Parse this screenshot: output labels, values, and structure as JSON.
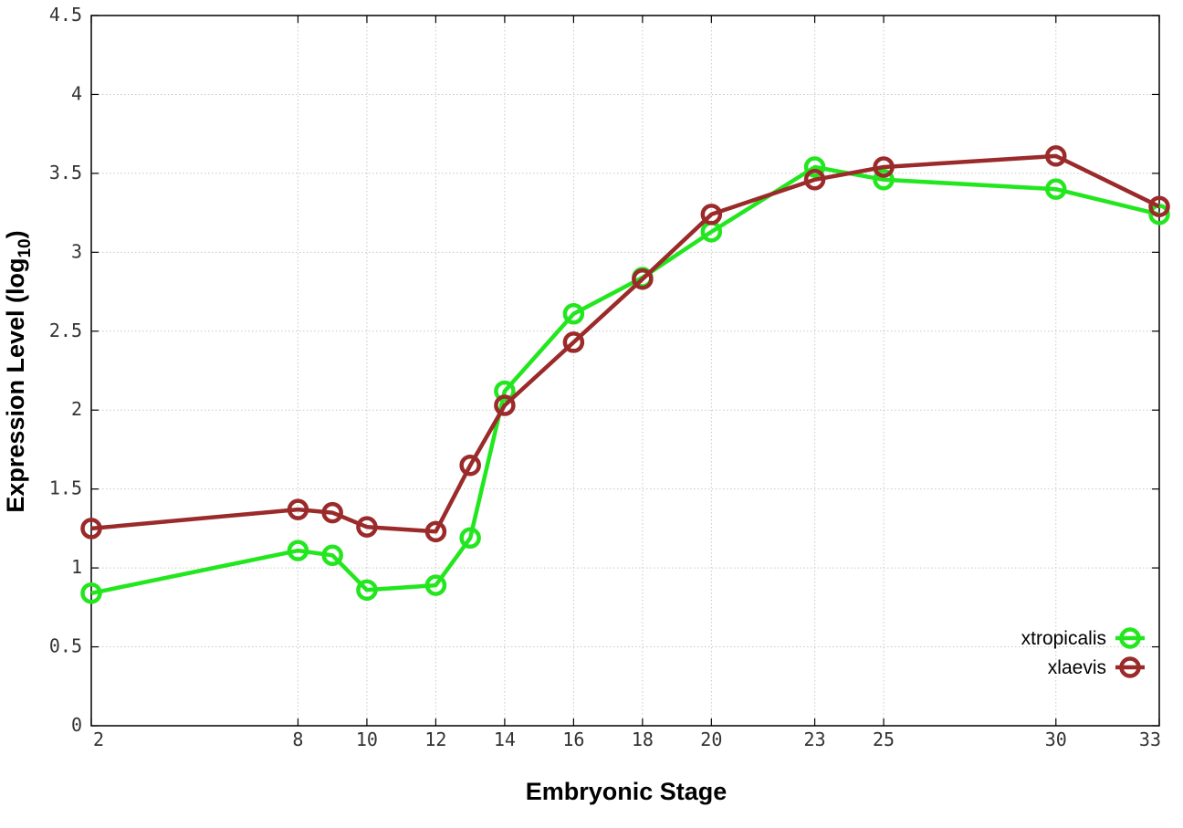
{
  "chart_data": {
    "type": "line",
    "xlabel": "Embryonic Stage",
    "ylabel_main": "Expression Level (log",
    "ylabel_sub": "10",
    "ylabel_close": ")",
    "x": [
      2,
      8,
      9,
      10,
      12,
      13,
      14,
      16,
      18,
      20,
      23,
      25,
      30,
      33
    ],
    "xlim": [
      2,
      33
    ],
    "ylim": [
      0,
      4.5
    ],
    "x_ticks": [
      2,
      8,
      10,
      12,
      14,
      16,
      18,
      20,
      23,
      25,
      30,
      33
    ],
    "x_tick_labels": [
      "2",
      "8",
      "10",
      "12",
      "14",
      "16",
      "18",
      "20",
      "23",
      "25",
      "30",
      "33"
    ],
    "y_ticks": [
      0,
      0.5,
      1,
      1.5,
      2,
      2.5,
      3,
      3.5,
      4,
      4.5
    ],
    "y_tick_labels": [
      "0",
      "0.5",
      "1",
      "1.5",
      "2",
      "2.5",
      "3",
      "3.5",
      "4",
      "4.5"
    ],
    "grid": true,
    "legend_position": "bottom-right",
    "series": [
      {
        "name": "xtropicalis",
        "color": "#22e61e",
        "values": [
          0.84,
          1.11,
          1.08,
          0.86,
          0.89,
          1.19,
          2.12,
          2.61,
          2.84,
          3.13,
          3.54,
          3.46,
          3.4,
          3.24
        ]
      },
      {
        "name": "xlaevis",
        "color": "#9b2a2a",
        "values": [
          1.25,
          1.37,
          1.35,
          1.26,
          1.23,
          1.65,
          2.03,
          2.43,
          2.83,
          3.24,
          3.46,
          3.54,
          3.61,
          3.29
        ]
      }
    ]
  }
}
